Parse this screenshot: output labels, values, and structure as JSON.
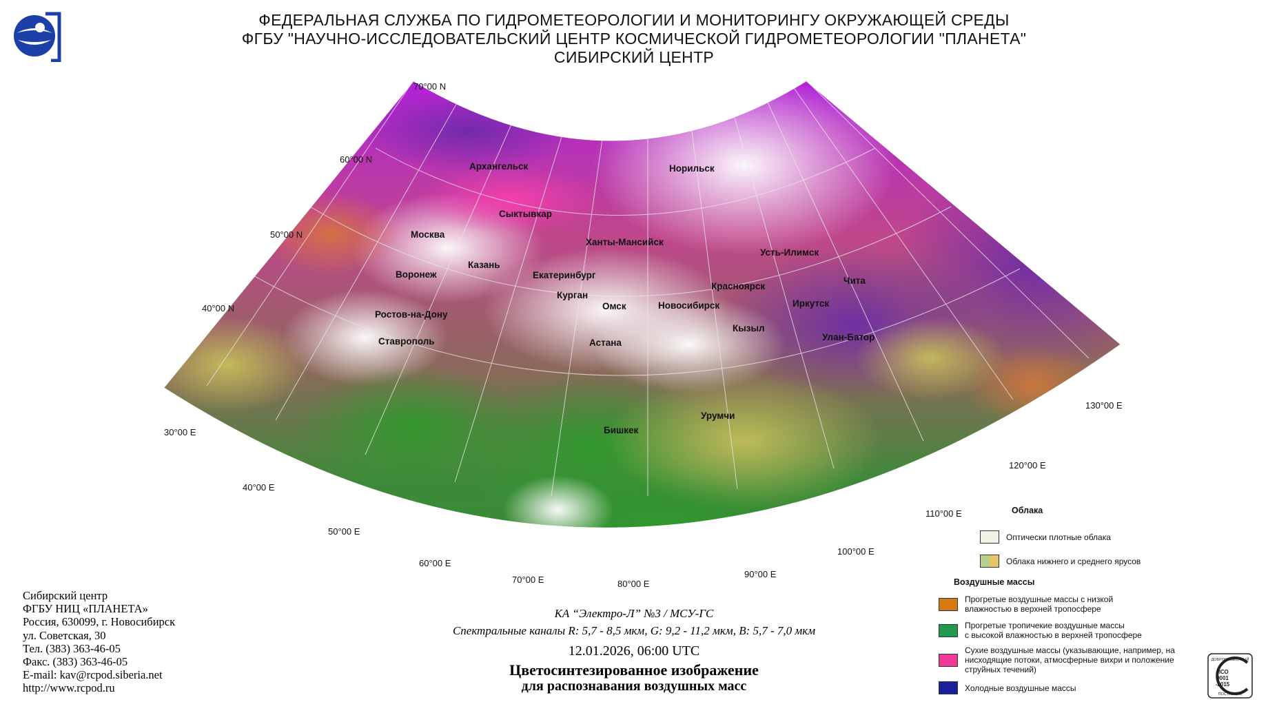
{
  "header": {
    "line1": "ФЕДЕРАЛЬНАЯ СЛУЖБА ПО ГИДРОМЕТЕОРОЛОГИИ И МОНИТОРИНГУ ОКРУЖАЮЩЕЙ СРЕДЫ",
    "line2": "ФГБУ \"НАУЧНО-ИССЛЕДОВАТЕЛЬСКИЙ ЦЕНТР КОСМИЧЕСКОЙ ГИДРОМЕТЕОРОЛОГИИ \"ПЛАНЕТА\"",
    "line3": "СИБИРСКИЙ ЦЕНТР"
  },
  "map": {
    "lat_labels": [
      "70°00 N",
      "60°00 N",
      "50°00 N",
      "40°00 N"
    ],
    "lon_labels": [
      "30°00 E",
      "40°00 E",
      "50°00 E",
      "60°00 E",
      "70°00 E",
      "80°00 E",
      "90°00 E",
      "100°00 E",
      "110°00 E",
      "120°00 E",
      "130°00 E"
    ],
    "cities": [
      "Архангельск",
      "Норильск",
      "Сыктывкар",
      "Москва",
      "Ханты-Мансийск",
      "Усть-Илимск",
      "Казань",
      "Воронеж",
      "Екатеринбург",
      "Красноярск",
      "Чита",
      "Курган",
      "Иркутск",
      "Омск",
      "Новосибирск",
      "Ростов-на-Дону",
      "Кызыл",
      "Улан-Батор",
      "Ставрополь",
      "Астана",
      "Урумчи",
      "Бишкек"
    ]
  },
  "footer": {
    "org1": "Сибирский центр",
    "org2": "ФГБУ НИЦ «ПЛАНЕТА»",
    "addr1": "Россия, 630099, г. Новосибирск",
    "addr2": "ул. Советская, 30",
    "tel": "Тел. (383) 363-46-05",
    "fax": "Факс. (383) 363-46-05",
    "email": "E-mail: kav@rcpod.siberia.net",
    "url": "http://www.rcpod.ru"
  },
  "info": {
    "satellite": "КА “Электро-Л” №3 / МСУ-ГС",
    "channels": "Спектральные каналы R: 5,7 - 8,5 мкм, G: 9,2 - 11,2 мкм, B: 5,7 - 7,0 мкм",
    "datetime": "12.01.2026, 06:00 UTC",
    "title1": "Цветосинтезированное изображение",
    "title2": "для распознавания воздушных масс"
  },
  "legend": {
    "clouds_heading": "Облака",
    "clouds_dense": "Оптически плотные облака",
    "clouds_low_mid": "Облака нижнего и среднего ярусов",
    "air_heading": "Воздушные массы",
    "warm_low_humidity": [
      "Прогретые воздушные массы с низкой",
      "влажностью в верхней тропосфере"
    ],
    "tropical_high_humidity": [
      "Прогретые тропичекие воздушные массы",
      "с высокой влажностью в верхней тропосфере"
    ],
    "dry_masses": [
      "Сухие воздушные массы (указывающие, например, на",
      "нисходящие потоки, атмосферные вихри и положение",
      "струйных течений)"
    ],
    "cold_masses": "Холодные воздушные массы",
    "colors": {
      "dense": "#f2f1e6",
      "low_mid_left": "#b7cf8a",
      "low_mid_right": "#e7c36a",
      "warm": "#d47a0e",
      "tropical": "#1f9a4e",
      "dry": "#ee3b99",
      "cold": "#1a1f9c"
    }
  },
  "iso_badge": {
    "top": "ДОБРОСОВЕСТНЫЙ",
    "iso": "ИСО",
    "num": "9001",
    "year": "-2015",
    "bottom": "ПОСТАВЩИК"
  }
}
